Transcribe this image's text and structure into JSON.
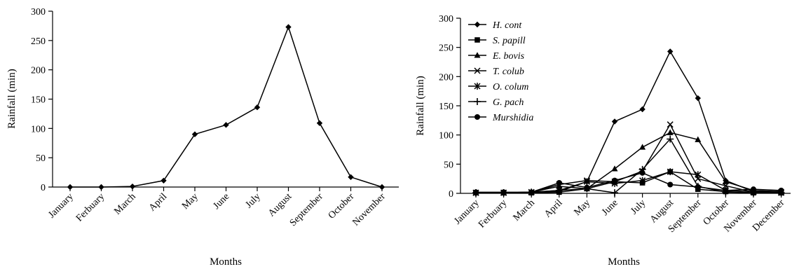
{
  "chart_data": [
    {
      "type": "line",
      "title": "",
      "xlabel": "Months",
      "ylabel": "Rainfall (min)",
      "ylim": [
        0,
        300
      ],
      "yticks": [
        0,
        50,
        100,
        150,
        200,
        250,
        300
      ],
      "grid": false,
      "categories": [
        "January",
        "Ferbuary",
        "March",
        "April",
        "May",
        "June",
        "July",
        "August",
        "September",
        "October",
        "November"
      ],
      "series": [
        {
          "name": "",
          "marker": "diamond",
          "values": [
            0,
            0,
            1,
            11,
            90,
            106,
            136,
            273,
            109,
            17,
            0
          ]
        }
      ]
    },
    {
      "type": "line",
      "title": "",
      "xlabel": "Months",
      "ylabel": "Rainfall (min)",
      "ylim": [
        0,
        300
      ],
      "yticks": [
        0,
        50,
        100,
        150,
        200,
        250,
        300
      ],
      "grid": false,
      "legend_position": "top-left",
      "categories": [
        "January",
        "Ferbuary",
        "March",
        "April",
        "May",
        "June",
        "July",
        "August",
        "September",
        "October",
        "November",
        "December"
      ],
      "series": [
        {
          "name": "H. cont",
          "marker": "diamond",
          "values": [
            1,
            1,
            2,
            3,
            20,
            123,
            144,
            243,
            163,
            22,
            3,
            2
          ]
        },
        {
          "name": "S. papill",
          "marker": "square",
          "values": [
            1,
            1,
            1,
            2,
            8,
            20,
            18,
            37,
            7,
            3,
            1,
            1
          ]
        },
        {
          "name": "E. bovis",
          "marker": "triangle",
          "values": [
            1,
            1,
            2,
            12,
            8,
            42,
            79,
            104,
            92,
            20,
            5,
            3
          ]
        },
        {
          "name": "T. colub",
          "marker": "x",
          "values": [
            1,
            1,
            2,
            15,
            22,
            20,
            38,
            118,
            25,
            13,
            2,
            1
          ]
        },
        {
          "name": "O. colum",
          "marker": "asterisk",
          "values": [
            1,
            1,
            2,
            5,
            20,
            17,
            22,
            37,
            32,
            5,
            3,
            2
          ]
        },
        {
          "name": "G. pach",
          "marker": "plus",
          "values": [
            1,
            1,
            2,
            5,
            8,
            1,
            41,
            93,
            12,
            2,
            1,
            1
          ]
        },
        {
          "name": "Murshidia",
          "marker": "circle",
          "values": [
            2,
            2,
            2,
            18,
            10,
            22,
            35,
            15,
            11,
            5,
            7,
            5
          ]
        }
      ]
    }
  ]
}
